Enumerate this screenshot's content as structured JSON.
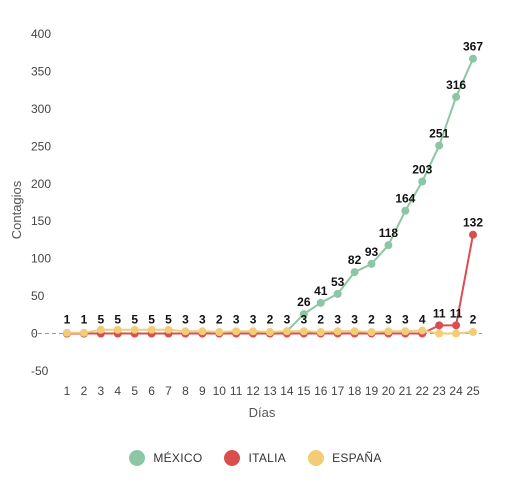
{
  "chart_data": {
    "type": "line",
    "xlabel": "Días",
    "ylabel": "Contagios",
    "x": [
      1,
      2,
      3,
      4,
      5,
      6,
      7,
      8,
      9,
      10,
      11,
      12,
      13,
      14,
      15,
      16,
      17,
      18,
      19,
      20,
      21,
      22,
      23,
      24,
      25
    ],
    "ylim": [
      -50,
      400
    ],
    "yticks": [
      -50,
      0,
      50,
      100,
      150,
      200,
      250,
      300,
      350,
      400
    ],
    "grid": false,
    "legend": "bottom-center",
    "series": [
      {
        "name": "MÉXICO",
        "color": "#8cc6a6",
        "values": [
          0,
          0,
          0,
          0,
          0,
          0,
          0,
          0,
          0,
          0,
          0,
          0,
          0,
          3,
          26,
          41,
          53,
          82,
          93,
          118,
          164,
          203,
          251,
          316,
          367
        ],
        "labels": [
          "",
          "",
          "",
          "",
          "",
          "",
          "",
          "",
          "",
          "",
          "",
          "",
          "",
          "",
          "26",
          "41",
          "53",
          "82",
          "93",
          "118",
          "164",
          "203",
          "251",
          "316",
          "367"
        ]
      },
      {
        "name": "ITALIA",
        "color": "#d94f4f",
        "values": [
          0,
          0,
          0,
          0,
          0,
          0,
          0,
          0,
          0,
          0,
          0,
          0,
          0,
          0,
          0,
          0,
          0,
          0,
          0,
          0,
          0,
          0,
          11,
          11,
          132
        ],
        "labels": [
          "",
          "",
          "",
          "",
          "",
          "",
          "",
          "",
          "",
          "",
          "",
          "",
          "",
          "",
          "",
          "",
          "",
          "",
          "",
          "",
          "",
          "",
          "11",
          "11",
          "132"
        ]
      },
      {
        "name": "ESPAÑA",
        "color": "#f2cc76",
        "values": [
          1,
          1,
          5,
          5,
          5,
          5,
          5,
          3,
          3,
          2,
          3,
          3,
          2,
          3,
          3,
          2,
          3,
          3,
          2,
          3,
          3,
          4,
          0,
          0,
          2
        ],
        "labels": [
          "1",
          "1",
          "5",
          "5",
          "5",
          "5",
          "5",
          "3",
          "3",
          "2",
          "3",
          "3",
          "2",
          "3",
          "3",
          "2",
          "3",
          "3",
          "2",
          "3",
          "3",
          "4",
          "",
          "",
          "2"
        ]
      }
    ]
  }
}
